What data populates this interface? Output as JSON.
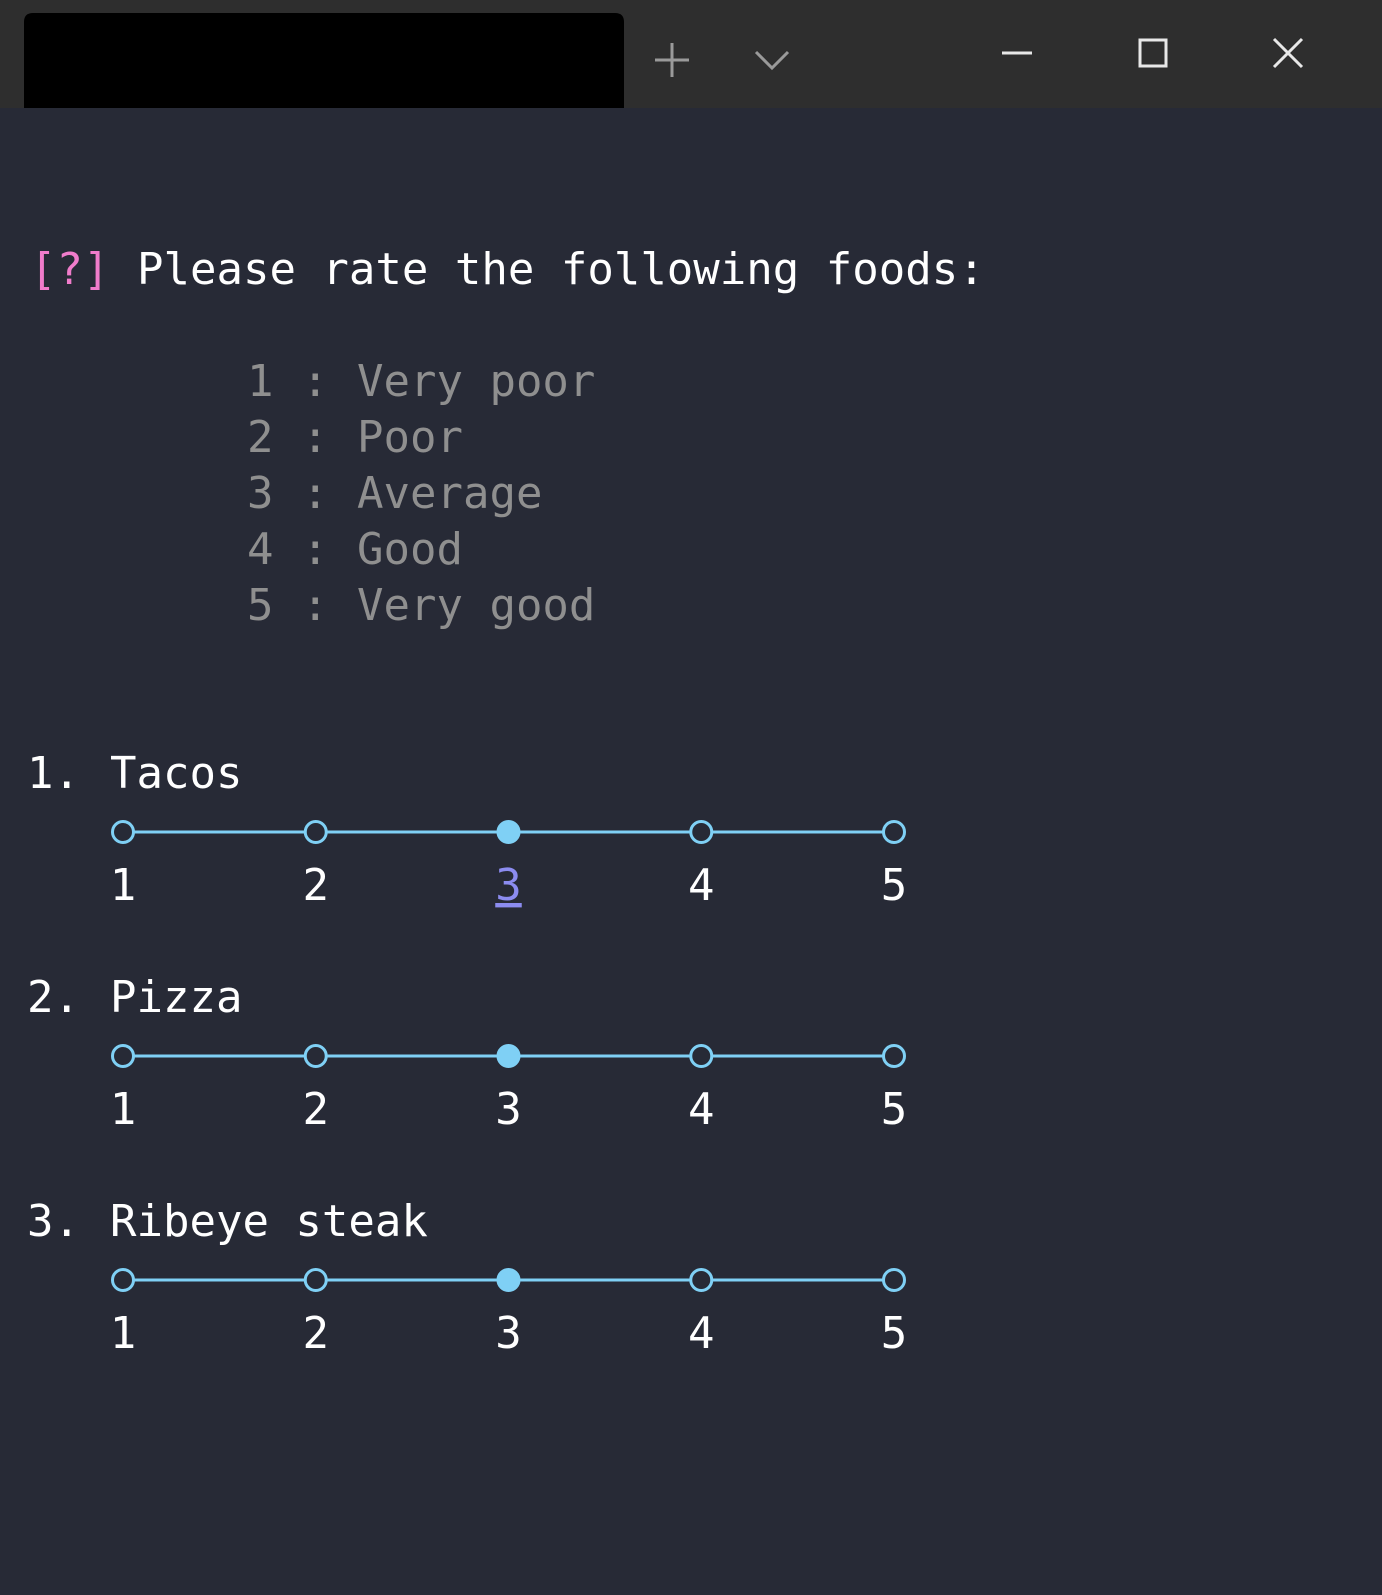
{
  "prompt": {
    "marker": "[?]",
    "question": "Please rate the following foods:"
  },
  "legend": {
    "separator": ":",
    "rows": [
      {
        "key": "1",
        "label": "Very poor"
      },
      {
        "key": "2",
        "label": "Poor"
      },
      {
        "key": "3",
        "label": "Average"
      },
      {
        "key": "4",
        "label": "Good"
      },
      {
        "key": "5",
        "label": "Very good"
      }
    ]
  },
  "options": [
    "1",
    "2",
    "3",
    "4",
    "5"
  ],
  "items": [
    {
      "number": "1.",
      "name": "Tacos",
      "selected": "3",
      "focused": true
    },
    {
      "number": "2.",
      "name": "Pizza",
      "selected": "3",
      "focused": false
    },
    {
      "number": "3.",
      "name": "Ribeye steak",
      "selected": "3",
      "focused": false
    }
  ]
}
